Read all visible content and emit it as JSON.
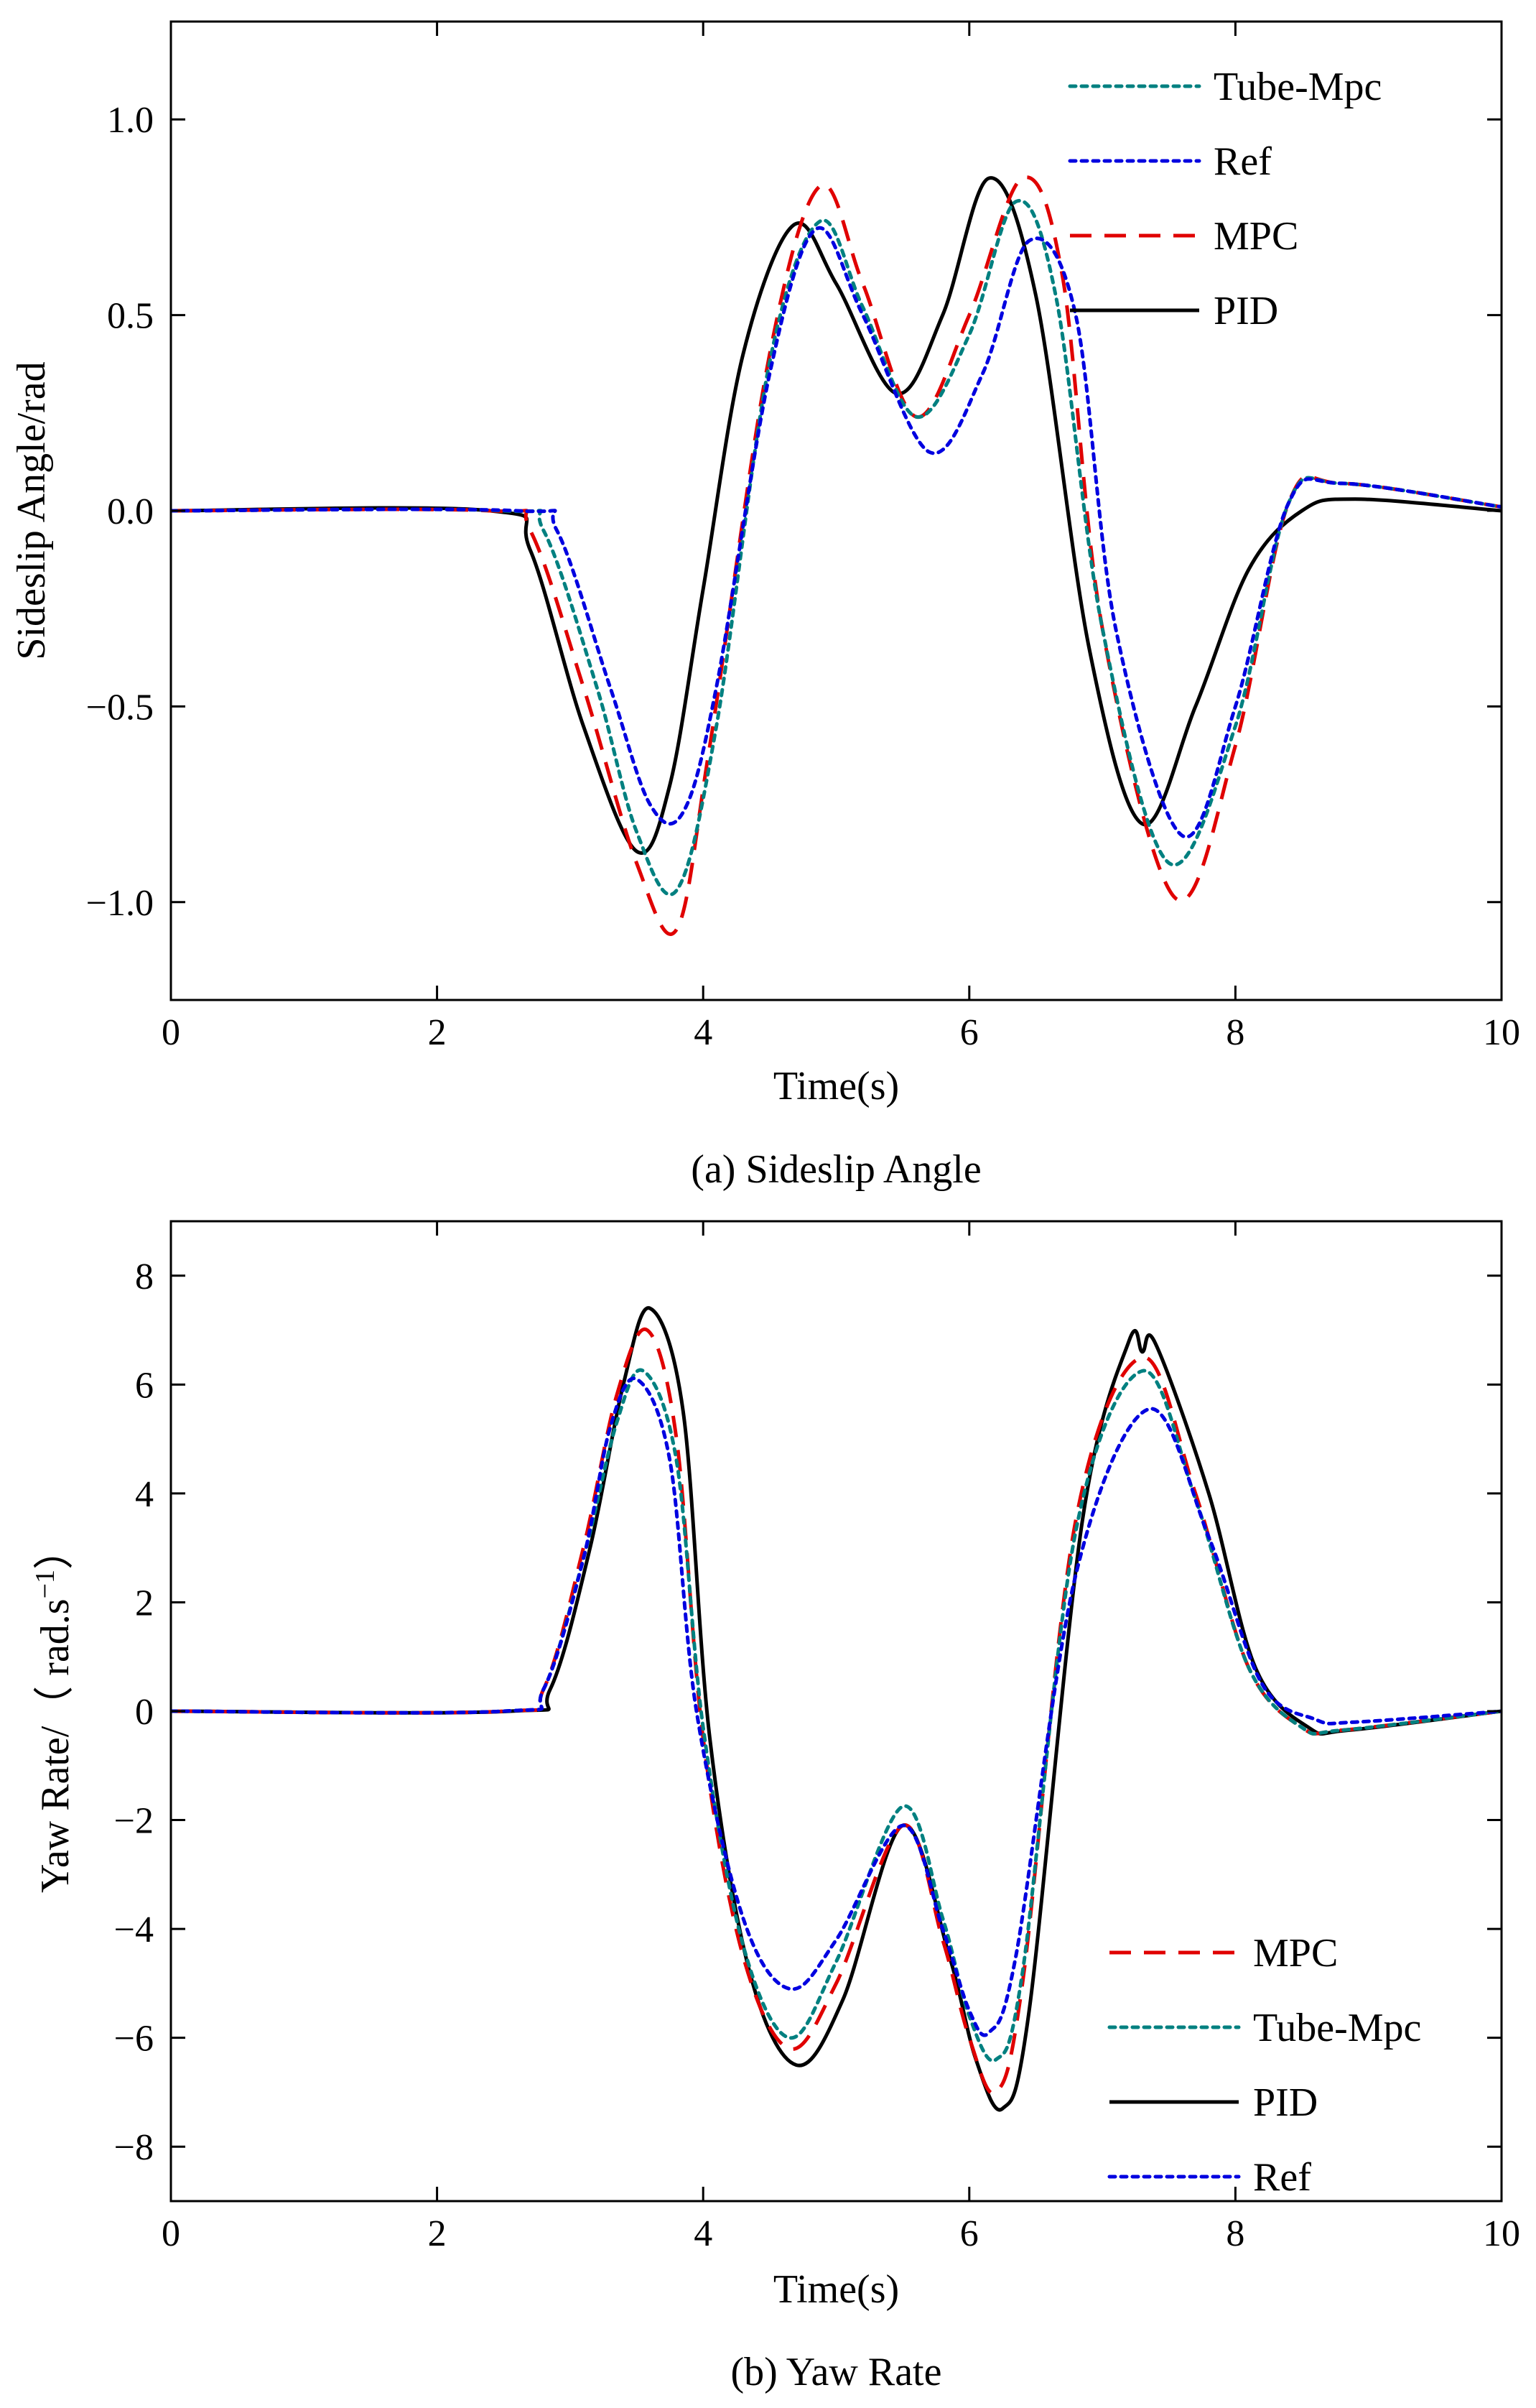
{
  "chart_data": [
    {
      "type": "line",
      "id": "a",
      "caption": "(a) Sideslip Angle",
      "xlabel": "Time(s)",
      "ylabel": "Sideslip Angle/rad",
      "xlim": [
        0,
        10
      ],
      "ylim": [
        -1.25,
        1.25
      ],
      "xticks": [
        0,
        2,
        4,
        6,
        8,
        10
      ],
      "yticks": [
        1.0,
        0.5,
        0.0,
        -0.5,
        -1.0
      ],
      "ytick_labels": [
        "1.0",
        "0.5",
        "0.0",
        "−0.5",
        "−1.0"
      ],
      "legend_position": "top-right",
      "legend_order": [
        "Tube-Mpc",
        "Ref",
        "MPC",
        "PID"
      ],
      "series": [
        {
          "name": "Tube-Mpc",
          "color": "#008080",
          "dash": "dotted",
          "x": [
            0,
            2.5,
            2.8,
            3.2,
            3.5,
            3.8,
            4.1,
            4.5,
            4.88,
            5.2,
            5.6,
            6.0,
            6.35,
            6.65,
            7.0,
            7.5,
            8.0,
            8.4,
            8.8,
            10
          ],
          "y": [
            0,
            0,
            -0.05,
            -0.45,
            -0.82,
            -0.97,
            -0.55,
            0.38,
            0.74,
            0.52,
            0.24,
            0.45,
            0.79,
            0.55,
            -0.3,
            -0.9,
            -0.55,
            0.02,
            0.07,
            0.01
          ]
        },
        {
          "name": "Ref",
          "color": "#0000e0",
          "dash": "dotted",
          "x": [
            0,
            2.6,
            2.9,
            3.3,
            3.6,
            3.85,
            4.1,
            4.5,
            4.85,
            5.2,
            5.7,
            6.1,
            6.45,
            6.8,
            7.1,
            7.6,
            8.0,
            8.4,
            8.8,
            10
          ],
          "y": [
            0,
            0,
            -0.05,
            -0.45,
            -0.75,
            -0.77,
            -0.45,
            0.35,
            0.72,
            0.5,
            0.15,
            0.35,
            0.69,
            0.5,
            -0.3,
            -0.83,
            -0.5,
            0.02,
            0.07,
            0.01
          ]
        },
        {
          "name": "MPC",
          "color": "#e00000",
          "dash": "dashed",
          "x": [
            0,
            2.4,
            2.7,
            3.1,
            3.5,
            3.8,
            4.05,
            4.5,
            4.88,
            5.2,
            5.6,
            6.0,
            6.4,
            6.7,
            7.0,
            7.55,
            8.0,
            8.4,
            8.8,
            10
          ],
          "y": [
            0,
            0,
            -0.05,
            -0.45,
            -0.9,
            -1.07,
            -0.6,
            0.4,
            0.83,
            0.58,
            0.24,
            0.5,
            0.85,
            0.6,
            -0.3,
            -0.99,
            -0.6,
            0.02,
            0.07,
            0.01
          ]
        },
        {
          "name": "PID",
          "color": "#000000",
          "dash": "solid",
          "x": [
            0,
            2.4,
            2.7,
            3.1,
            3.5,
            3.75,
            4.0,
            4.3,
            4.68,
            5.0,
            5.45,
            5.8,
            6.15,
            6.5,
            6.9,
            7.3,
            7.7,
            8.1,
            8.5,
            8.9,
            10
          ],
          "y": [
            0,
            0,
            -0.1,
            -0.55,
            -0.87,
            -0.7,
            -0.2,
            0.4,
            0.73,
            0.58,
            0.3,
            0.5,
            0.85,
            0.55,
            -0.35,
            -0.8,
            -0.5,
            -0.15,
            0.0,
            0.03,
            0.0
          ]
        }
      ]
    },
    {
      "type": "line",
      "id": "b",
      "caption": "(b) Yaw Rate",
      "xlabel": "Time(s)",
      "ylabel_main": "Yaw Rate/（ rad.s",
      "ylabel_sup": "−1",
      "ylabel_close": "）",
      "xlim": [
        0,
        10
      ],
      "ylim": [
        -9,
        9
      ],
      "xticks": [
        0,
        2,
        4,
        6,
        8,
        10
      ],
      "yticks": [
        8,
        6,
        4,
        2,
        0,
        -2,
        -4,
        -6,
        -8
      ],
      "ytick_labels": [
        "8",
        "6",
        "4",
        "2",
        "0",
        "−2",
        "−4",
        "−6",
        "−8"
      ],
      "legend_position": "bottom-right",
      "legend_order": [
        "MPC",
        "Tube-Mpc",
        "PID",
        "Ref"
      ],
      "series": [
        {
          "name": "MPC",
          "color": "#e00000",
          "dash": "dashed",
          "x": [
            0,
            2.5,
            2.8,
            3.1,
            3.35,
            3.58,
            3.8,
            4.0,
            4.3,
            4.65,
            5.0,
            5.5,
            5.8,
            6.0,
            6.2,
            6.4,
            6.8,
            7.3,
            7.7,
            8.1,
            8.5,
            8.8,
            10
          ],
          "y": [
            0,
            0,
            0.4,
            3.0,
            5.8,
            7.0,
            5.0,
            -0.5,
            -4.5,
            -6.2,
            -5.0,
            -2.1,
            -4.2,
            -6.0,
            -7.0,
            -5.0,
            3.5,
            6.5,
            4.0,
            0.8,
            -0.3,
            -0.35,
            0
          ]
        },
        {
          "name": "Tube-Mpc",
          "color": "#008080",
          "dash": "dotted",
          "x": [
            0,
            2.5,
            2.8,
            3.1,
            3.35,
            3.55,
            3.8,
            4.0,
            4.3,
            4.65,
            5.0,
            5.5,
            5.8,
            6.0,
            6.2,
            6.4,
            6.8,
            7.3,
            7.7,
            8.1,
            8.5,
            8.8,
            10
          ],
          "y": [
            0,
            0,
            0.4,
            2.8,
            5.3,
            6.25,
            4.6,
            -0.3,
            -4.3,
            -6.0,
            -4.6,
            -1.75,
            -3.8,
            -5.6,
            -6.4,
            -4.8,
            3.3,
            6.25,
            3.9,
            0.8,
            -0.3,
            -0.35,
            0
          ]
        },
        {
          "name": "PID",
          "color": "#000000",
          "dash": "solid",
          "x": [
            0,
            2.55,
            2.85,
            3.15,
            3.4,
            3.6,
            3.85,
            4.05,
            4.35,
            4.7,
            5.05,
            5.5,
            5.85,
            6.05,
            6.25,
            6.45,
            6.85,
            7.2,
            7.3,
            7.4,
            7.8,
            8.15,
            8.55,
            8.85,
            10
          ],
          "y": [
            0,
            0,
            0.4,
            3.0,
            6.0,
            7.4,
            5.5,
            -0.5,
            -4.8,
            -6.5,
            -5.3,
            -2.1,
            -4.5,
            -6.4,
            -7.3,
            -5.5,
            3.5,
            6.8,
            6.6,
            6.75,
            4.0,
            0.8,
            -0.3,
            -0.35,
            0
          ]
        },
        {
          "name": "Ref",
          "color": "#0000e0",
          "dash": "dotted",
          "x": [
            0,
            2.5,
            2.8,
            3.1,
            3.3,
            3.5,
            3.75,
            3.95,
            4.3,
            4.65,
            5.0,
            5.5,
            5.8,
            6.0,
            6.15,
            6.35,
            6.8,
            7.35,
            7.8,
            8.2,
            8.6,
            8.9,
            10
          ],
          "y": [
            0,
            0,
            0.4,
            2.8,
            5.2,
            6.1,
            4.6,
            0.0,
            -3.8,
            -5.1,
            -4.2,
            -2.1,
            -4.0,
            -5.5,
            -5.9,
            -4.5,
            2.5,
            5.55,
            3.2,
            0.5,
            -0.15,
            -0.2,
            0
          ]
        }
      ]
    }
  ]
}
